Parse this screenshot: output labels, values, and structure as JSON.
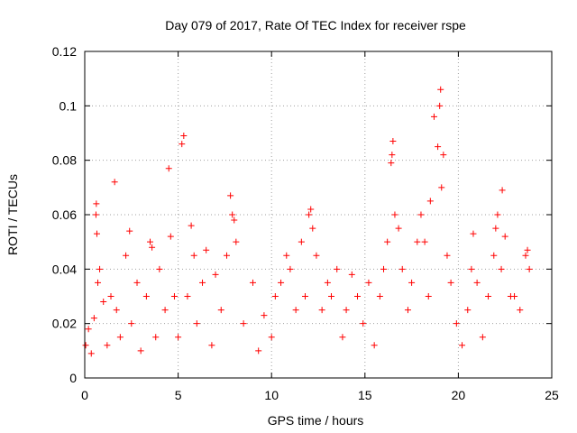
{
  "chart_data": {
    "type": "scatter",
    "title": "Day 079 of 2017, Rate Of TEC Index for receiver rspe",
    "xlabel": "GPS time / hours",
    "ylabel": "ROTI / TECUs",
    "xlim": [
      0,
      25
    ],
    "ylim": [
      0,
      0.12
    ],
    "xticks": [
      0,
      5,
      10,
      15,
      20,
      25
    ],
    "yticks": [
      0,
      0.02,
      0.04,
      0.06,
      0.08,
      0.1,
      0.12
    ],
    "xtick_labels": [
      "0",
      "5",
      "10",
      "15",
      "20",
      "25"
    ],
    "ytick_labels": [
      "0",
      "0.02",
      "0.04",
      "0.06",
      "0.08",
      "0.1",
      "0.12"
    ],
    "grid": true,
    "marker": "+",
    "color": "#ff0000",
    "series": [
      {
        "name": "ROTI",
        "x": [
          0.05,
          0.2,
          0.35,
          0.5,
          0.6,
          0.62,
          0.65,
          0.7,
          0.8,
          1.0,
          1.2,
          1.4,
          1.6,
          1.7,
          1.9,
          2.2,
          2.4,
          2.5,
          2.8,
          3.0,
          3.3,
          3.5,
          3.6,
          3.8,
          4.0,
          4.3,
          4.5,
          4.6,
          4.8,
          5.0,
          5.2,
          5.3,
          5.5,
          5.7,
          5.85,
          6.0,
          6.3,
          6.5,
          6.8,
          7.0,
          7.3,
          7.6,
          7.8,
          7.9,
          8.0,
          8.1,
          8.5,
          9.0,
          9.3,
          9.6,
          10.0,
          10.2,
          10.5,
          10.8,
          11.0,
          11.3,
          11.6,
          11.8,
          12.0,
          12.1,
          12.2,
          12.4,
          12.7,
          13.0,
          13.2,
          13.5,
          13.8,
          14.0,
          14.3,
          14.6,
          14.9,
          15.2,
          15.5,
          15.8,
          16.0,
          16.2,
          16.4,
          16.45,
          16.5,
          16.6,
          16.8,
          17.0,
          17.3,
          17.5,
          17.8,
          18.0,
          18.2,
          18.4,
          18.5,
          18.7,
          18.9,
          19.0,
          19.05,
          19.1,
          19.2,
          19.4,
          19.6,
          19.9,
          20.2,
          20.5,
          20.7,
          20.8,
          21.0,
          21.3,
          21.6,
          21.9,
          22.0,
          22.1,
          22.3,
          22.35,
          22.5,
          22.8,
          23.0,
          23.3,
          23.6,
          23.7,
          23.8
        ],
        "y": [
          0.012,
          0.018,
          0.009,
          0.022,
          0.06,
          0.064,
          0.053,
          0.035,
          0.04,
          0.028,
          0.012,
          0.03,
          0.072,
          0.025,
          0.015,
          0.045,
          0.054,
          0.02,
          0.035,
          0.01,
          0.03,
          0.05,
          0.048,
          0.015,
          0.04,
          0.025,
          0.077,
          0.052,
          0.03,
          0.015,
          0.086,
          0.089,
          0.03,
          0.056,
          0.045,
          0.02,
          0.035,
          0.047,
          0.012,
          0.038,
          0.025,
          0.045,
          0.067,
          0.06,
          0.058,
          0.05,
          0.02,
          0.035,
          0.01,
          0.023,
          0.015,
          0.03,
          0.035,
          0.045,
          0.04,
          0.025,
          0.05,
          0.03,
          0.06,
          0.062,
          0.055,
          0.045,
          0.025,
          0.035,
          0.03,
          0.04,
          0.015,
          0.025,
          0.038,
          0.03,
          0.02,
          0.035,
          0.012,
          0.03,
          0.04,
          0.05,
          0.079,
          0.082,
          0.087,
          0.06,
          0.055,
          0.04,
          0.025,
          0.035,
          0.05,
          0.06,
          0.05,
          0.03,
          0.065,
          0.096,
          0.085,
          0.1,
          0.106,
          0.07,
          0.082,
          0.045,
          0.035,
          0.02,
          0.012,
          0.025,
          0.04,
          0.053,
          0.035,
          0.015,
          0.03,
          0.045,
          0.055,
          0.06,
          0.04,
          0.069,
          0.052,
          0.03,
          0.03,
          0.025,
          0.045,
          0.047,
          0.04
        ]
      }
    ]
  }
}
